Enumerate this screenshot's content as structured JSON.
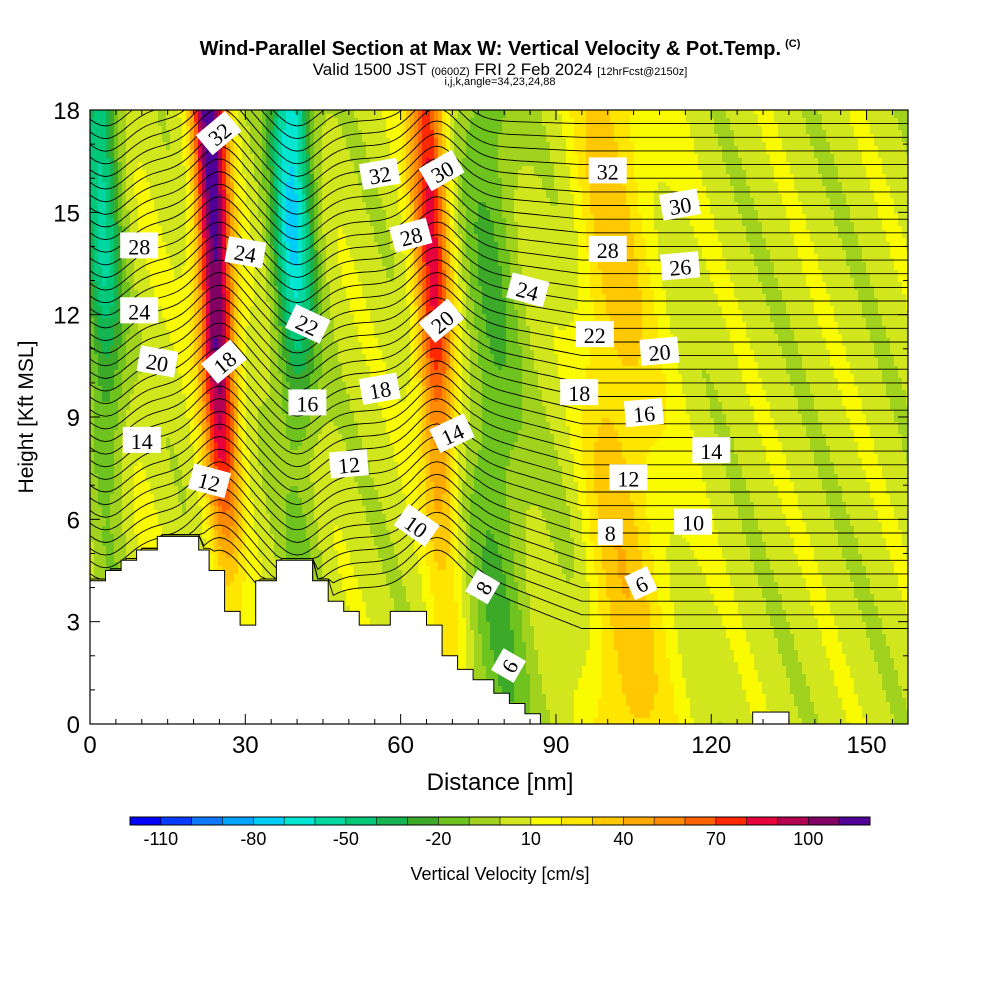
{
  "title": {
    "main": "Wind-Parallel Section at Max W: Vertical Velocity & Pot.Temp.",
    "copyright": "(C)",
    "valid_prefix": "Valid 1500 JST",
    "valid_utc": "(0600Z)",
    "valid_date": "FRI 2 Feb 2024",
    "forecast": "[12hrFcst@2150z]",
    "grid_info": "i,j,k,angle=34,23,24,88"
  },
  "chart_data": {
    "type": "heatmap",
    "xlabel": "Distance [nm]",
    "ylabel": "Height [Kft MSL]",
    "xlim": [
      0,
      158
    ],
    "ylim": [
      0,
      18
    ],
    "x_ticks": [
      0,
      30,
      60,
      90,
      120,
      150
    ],
    "y_ticks": [
      0,
      3,
      6,
      9,
      12,
      15,
      18
    ],
    "grid": false,
    "colorbar": {
      "label": "Vertical Velocity [cm/s]",
      "tick_labels": [
        "-110",
        "-80",
        "-50",
        "-20",
        "10",
        "40",
        "70",
        "100"
      ],
      "tick_values": [
        -110,
        -80,
        -50,
        -20,
        10,
        40,
        70,
        100
      ],
      "range": [
        -120,
        120
      ],
      "step": 10,
      "colors": [
        "#0000ff",
        "#0a3cff",
        "#0f78ff",
        "#00a5ff",
        "#00cdfa",
        "#00e6d2",
        "#00d7a0",
        "#00c878",
        "#14b450",
        "#3caa28",
        "#6ec31e",
        "#a0d21e",
        "#d2e61e",
        "#fafa00",
        "#ffe600",
        "#ffc800",
        "#ffaa00",
        "#ff8c00",
        "#ff6400",
        "#ff2800",
        "#e6003c",
        "#b40050",
        "#820064",
        "#500096"
      ]
    },
    "vertical_velocity_updrafts": [
      {
        "x": 25,
        "peak_cm_s": 110
      },
      {
        "x": 67,
        "peak_cm_s": 75
      },
      {
        "x": 100,
        "peak_cm_s": 40
      },
      {
        "x": 0,
        "peak_cm_s": 10
      }
    ],
    "vertical_velocity_downdrafts": [
      {
        "x": 40,
        "peak_cm_s": -75
      },
      {
        "x": 3,
        "peak_cm_s": -60
      },
      {
        "x": 78,
        "peak_cm_s": -30
      },
      {
        "x": 93,
        "peak_cm_s": -20
      }
    ],
    "terrain": {
      "x": [
        0,
        3,
        3,
        6,
        6,
        9,
        9,
        13,
        13,
        21,
        21,
        23,
        23,
        26,
        26,
        29,
        29,
        32,
        32,
        36,
        36,
        43,
        43,
        46,
        46,
        49,
        49,
        52,
        52,
        58,
        58,
        65,
        65,
        68,
        68,
        71,
        71,
        74,
        74,
        78,
        78,
        81,
        81,
        84,
        84,
        87,
        87,
        158
      ],
      "kft": [
        4.2,
        4.2,
        4.5,
        4.5,
        4.8,
        4.8,
        5.1,
        5.1,
        5.5,
        5.5,
        5.1,
        5.1,
        4.5,
        4.5,
        3.3,
        3.3,
        2.9,
        2.9,
        4.2,
        4.2,
        4.8,
        4.8,
        4.2,
        4.2,
        3.6,
        3.6,
        3.3,
        3.3,
        2.9,
        2.9,
        3.3,
        3.3,
        2.9,
        2.9,
        2.0,
        2.0,
        1.6,
        1.6,
        1.3,
        1.3,
        0.9,
        0.9,
        0.6,
        0.6,
        0.3,
        0.3,
        0,
        0
      ]
    },
    "contour_labels": [
      {
        "text": "32",
        "x": 25,
        "y": 17.3,
        "angle": -40
      },
      {
        "text": "28",
        "x": 9.5,
        "y": 14.0,
        "angle": 0
      },
      {
        "text": "24",
        "x": 30,
        "y": 13.8,
        "angle": 10
      },
      {
        "text": "24",
        "x": 9.5,
        "y": 12.1,
        "angle": 0
      },
      {
        "text": "22",
        "x": 42,
        "y": 11.7,
        "angle": 25
      },
      {
        "text": "20",
        "x": 13,
        "y": 10.6,
        "angle": 10
      },
      {
        "text": "18",
        "x": 26,
        "y": 10.6,
        "angle": -40
      },
      {
        "text": "16",
        "x": 42,
        "y": 9.4,
        "angle": 0
      },
      {
        "text": "14",
        "x": 10,
        "y": 8.3,
        "angle": 0
      },
      {
        "text": "12",
        "x": 23,
        "y": 7.1,
        "angle": 15
      },
      {
        "text": "32",
        "x": 56,
        "y": 16.1,
        "angle": -10
      },
      {
        "text": "30",
        "x": 68,
        "y": 16.2,
        "angle": -30
      },
      {
        "text": "28",
        "x": 62,
        "y": 14.3,
        "angle": -15
      },
      {
        "text": "20",
        "x": 68,
        "y": 11.8,
        "angle": -40
      },
      {
        "text": "18",
        "x": 56,
        "y": 9.8,
        "angle": -10
      },
      {
        "text": "14",
        "x": 70,
        "y": 8.5,
        "angle": -25
      },
      {
        "text": "12",
        "x": 50,
        "y": 7.6,
        "angle": -5
      },
      {
        "text": "10",
        "x": 63,
        "y": 5.8,
        "angle": 35
      },
      {
        "text": "8",
        "x": 76,
        "y": 4.0,
        "angle": -60
      },
      {
        "text": "6",
        "x": 81,
        "y": 1.7,
        "angle": -60
      },
      {
        "text": "24",
        "x": 84.5,
        "y": 12.7,
        "angle": 15
      },
      {
        "text": "32",
        "x": 100,
        "y": 16.2,
        "angle": 0
      },
      {
        "text": "30",
        "x": 114,
        "y": 15.2,
        "angle": -10
      },
      {
        "text": "28",
        "x": 100,
        "y": 13.9,
        "angle": 0
      },
      {
        "text": "26",
        "x": 114,
        "y": 13.4,
        "angle": -5
      },
      {
        "text": "22",
        "x": 97.5,
        "y": 11.4,
        "angle": 0
      },
      {
        "text": "20",
        "x": 110,
        "y": 10.9,
        "angle": -5
      },
      {
        "text": "18",
        "x": 94.5,
        "y": 9.7,
        "angle": 0
      },
      {
        "text": "16",
        "x": 107,
        "y": 9.1,
        "angle": -5
      },
      {
        "text": "14",
        "x": 120,
        "y": 8.0,
        "angle": 0
      },
      {
        "text": "12",
        "x": 104,
        "y": 7.2,
        "angle": 0
      },
      {
        "text": "10",
        "x": 116.5,
        "y": 5.9,
        "angle": 0
      },
      {
        "text": "8",
        "x": 100.5,
        "y": 5.6,
        "angle": 0
      },
      {
        "text": "6",
        "x": 106.5,
        "y": 4.1,
        "angle": -25
      }
    ]
  }
}
